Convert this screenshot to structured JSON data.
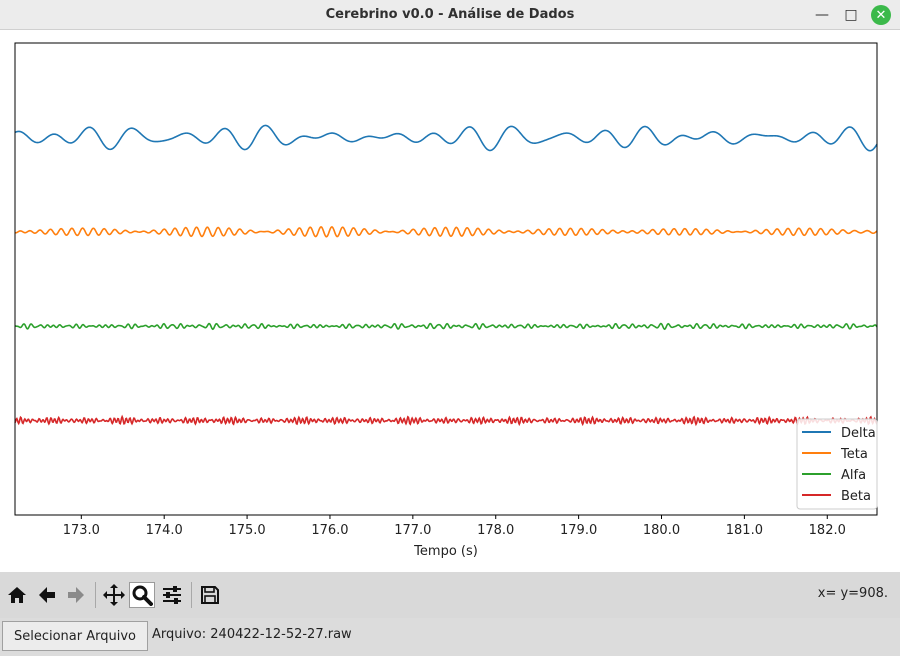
{
  "window": {
    "title": "Cerebrino v0.0 - Análise de Dados",
    "min_glyph": "—",
    "max_glyph": "□",
    "close_glyph": "✕"
  },
  "toolbar": {
    "tools": [
      "home-icon",
      "back-arrow-icon",
      "forward-arrow-icon",
      "pan-icon",
      "zoom-icon",
      "configure-subplots-icon",
      "save-icon"
    ],
    "active_tool": "zoom-icon",
    "coords": "x= y=908."
  },
  "bottom": {
    "select_button": "Selecionar Arquivo",
    "file_label": "Arquivo: 240422-12-52-27.raw"
  },
  "colors": {
    "delta": "#1f77b4",
    "teta": "#ff7f0e",
    "alfa": "#2ca02c",
    "beta": "#d62728"
  },
  "chart_data": {
    "type": "line",
    "xlabel": "Tempo (s)",
    "ylabel": "",
    "xlim": [
      172.2,
      182.6
    ],
    "ylim": [
      -4,
      1
    ],
    "xticks": [
      "173.0",
      "174.0",
      "175.0",
      "176.0",
      "177.0",
      "178.0",
      "179.0",
      "180.0",
      "181.0",
      "182.0"
    ],
    "grid": false,
    "legend_position": "lower-right",
    "series": [
      {
        "name": "Delta",
        "offset": 0,
        "amplitude": 0.08,
        "freq_hz": 2.2,
        "color": "#1f77b4"
      },
      {
        "name": "Teta",
        "offset": -1,
        "amplitude": 0.03,
        "freq_hz": 6.0,
        "color": "#ff7f0e"
      },
      {
        "name": "Alfa",
        "offset": -2,
        "amplitude": 0.015,
        "freq_hz": 10.0,
        "color": "#2ca02c"
      },
      {
        "name": "Beta",
        "offset": -3,
        "amplitude": 0.02,
        "freq_hz": 20.0,
        "color": "#d62728"
      }
    ]
  }
}
